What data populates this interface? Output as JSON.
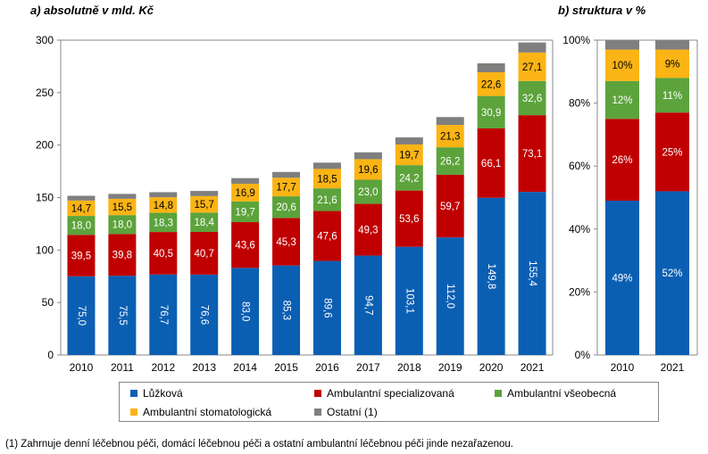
{
  "chart_data": [
    {
      "type": "bar",
      "stacked": true,
      "title": "a) absolutně v mld. Kč",
      "categories": [
        "2010",
        "2011",
        "2012",
        "2013",
        "2014",
        "2015",
        "2016",
        "2017",
        "2018",
        "2019",
        "2020",
        "2021"
      ],
      "ylim": [
        0,
        300
      ],
      "yticks": [
        "0",
        "50",
        "100",
        "150",
        "200",
        "250",
        "300"
      ],
      "grid": false,
      "series": [
        {
          "name": "Lůžková",
          "color": "#0B5FB3",
          "values": [
            75.0,
            75.5,
            76.7,
            76.6,
            83.0,
            85.3,
            89.6,
            94.7,
            103.1,
            112.0,
            149.8,
            155.4
          ],
          "labels": [
            "75,0",
            "75,5",
            "76,7",
            "76,6",
            "83,0",
            "85,3",
            "89,6",
            "94,7",
            "103,1",
            "112,0",
            "149,8",
            "155,4"
          ]
        },
        {
          "name": "Ambulantní specializovaná",
          "color": "#C00000",
          "values": [
            39.5,
            39.8,
            40.5,
            40.7,
            43.6,
            45.3,
            47.6,
            49.3,
            53.6,
            59.7,
            66.1,
            73.1
          ],
          "labels": [
            "39,5",
            "39,8",
            "40,5",
            "40,7",
            "43,6",
            "45,3",
            "47,6",
            "49,3",
            "53,6",
            "59,7",
            "66,1",
            "73,1"
          ]
        },
        {
          "name": "Ambulantní všeobecná",
          "color": "#5CA33C",
          "values": [
            18.0,
            18.0,
            18.3,
            18.4,
            19.7,
            20.6,
            21.6,
            23.0,
            24.2,
            26.2,
            30.9,
            32.6
          ],
          "labels": [
            "18,0",
            "18,0",
            "18,3",
            "18,4",
            "19,7",
            "20,6",
            "21,6",
            "23,0",
            "24,2",
            "26,2",
            "30,9",
            "32,6"
          ]
        },
        {
          "name": "Ambulantní stomatologická",
          "color": "#FBB415",
          "values": [
            14.7,
            15.5,
            14.8,
            15.7,
            16.9,
            17.7,
            18.5,
            19.6,
            19.7,
            21.3,
            22.6,
            27.1
          ],
          "labels": [
            "14,7",
            "15,5",
            "14,8",
            "15,7",
            "16,9",
            "17,7",
            "18,5",
            "19,6",
            "19,7",
            "21,3",
            "22,6",
            "27,1"
          ]
        },
        {
          "name": "Ostatní (1)",
          "color": "#7F7F7F",
          "values": [
            4.5,
            4.7,
            4.8,
            4.9,
            5.3,
            5.5,
            6.0,
            6.5,
            6.7,
            7.5,
            8.5,
            9.6
          ],
          "labels": [
            "",
            "",
            "",
            "",
            "",
            "",
            "",
            "",
            "",
            "",
            "",
            ""
          ]
        }
      ]
    },
    {
      "type": "bar",
      "stacked": true,
      "title": "b) struktura v %",
      "categories": [
        "2010",
        "2021"
      ],
      "ylim": [
        0,
        100
      ],
      "yticks": [
        "0%",
        "20%",
        "40%",
        "60%",
        "80%",
        "100%"
      ],
      "grid": false,
      "series": [
        {
          "name": "Lůžková",
          "values": [
            49,
            52
          ],
          "labels": [
            "49%",
            "52%"
          ]
        },
        {
          "name": "Ambulantní specializovaná",
          "values": [
            26,
            25
          ],
          "labels": [
            "26%",
            "25%"
          ]
        },
        {
          "name": "Ambulantní všeobecná",
          "values": [
            12,
            11
          ],
          "labels": [
            "12%",
            "11%"
          ]
        },
        {
          "name": "Ambulantní stomatologická",
          "values": [
            10,
            9
          ],
          "labels": [
            "10%",
            "9%"
          ]
        },
        {
          "name": "Ostatní (1)",
          "values": [
            3,
            3
          ],
          "labels": [
            "",
            ""
          ]
        }
      ]
    }
  ],
  "legend": {
    "items": [
      {
        "name": "Lůžková",
        "color": "#0B5FB3"
      },
      {
        "name": "Ambulantní specializovaná",
        "color": "#C00000"
      },
      {
        "name": "Ambulantní všeobecná",
        "color": "#5CA33C"
      },
      {
        "name": "Ambulantní stomatologická",
        "color": "#FBB415"
      },
      {
        "name": "Ostatní (1)",
        "color": "#7F7F7F"
      }
    ]
  },
  "footnote": "(1) Zahrnuje denní léčebnou péči, domácí léčebnou péči a ostatní ambulantní léčebnou péči jinde nezařazenou."
}
